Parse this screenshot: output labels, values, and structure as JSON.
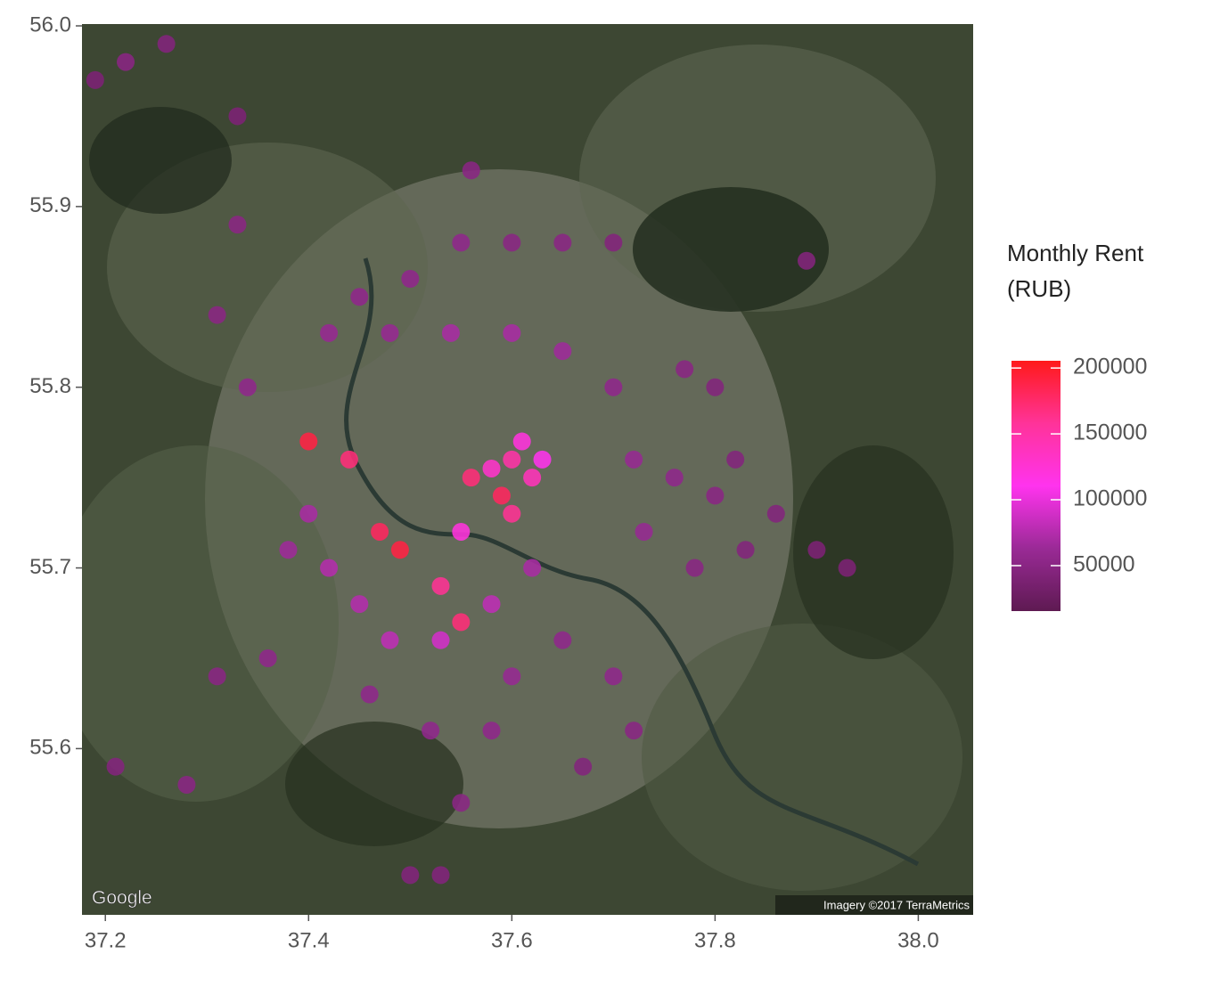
{
  "chart_data": {
    "type": "scatter",
    "legend_title": [
      "Monthly Rent",
      "(RUB)"
    ],
    "credits": [
      "Google",
      "Imagery ©2017 TerraMetrics"
    ],
    "xlim": [
      37.177,
      38.054
    ],
    "ylim": [
      55.508,
      56.001
    ],
    "xticks": [
      37.2,
      37.4,
      37.6,
      37.8,
      {
        "value": 38,
        "label": "38.0"
      }
    ],
    "yticks": [
      55.6,
      55.7,
      55.8,
      55.9,
      {
        "value": 56,
        "label": "56.0"
      }
    ],
    "colorlim": [
      15500,
      205500
    ],
    "colorticks": [
      50000,
      100000,
      150000,
      200000
    ],
    "colors": [
      "#5e1a52",
      "#9a2a96",
      "#ff33ee",
      "#ff3399",
      "#ff1a1a"
    ],
    "x": [
      37.6,
      37.62,
      37.59,
      37.61,
      37.58,
      37.63,
      37.6,
      37.56,
      37.55,
      37.53,
      37.49,
      37.47,
      37.44,
      37.4,
      37.55,
      37.55,
      37.6,
      37.65,
      37.7,
      37.5,
      37.45,
      37.42,
      37.48,
      37.54,
      37.6,
      37.65,
      37.7,
      37.77,
      37.8,
      37.72,
      37.76,
      37.8,
      37.82,
      37.83,
      37.78,
      37.73,
      37.86,
      37.9,
      37.93,
      37.62,
      37.58,
      37.53,
      37.48,
      37.45,
      37.6,
      37.58,
      37.55,
      37.52,
      37.46,
      37.65,
      37.7,
      37.72,
      37.67,
      37.53,
      37.5,
      37.4,
      37.38,
      37.42,
      37.36,
      37.31,
      37.34,
      37.31,
      37.33,
      37.22,
      37.26,
      37.19,
      37.33,
      37.56,
      37.89,
      37.21,
      37.28
    ],
    "y": [
      55.76,
      55.75,
      55.74,
      55.77,
      55.755,
      55.76,
      55.73,
      55.75,
      55.72,
      55.69,
      55.71,
      55.72,
      55.76,
      55.77,
      55.67,
      55.88,
      55.88,
      55.88,
      55.88,
      55.86,
      55.85,
      55.83,
      55.83,
      55.83,
      55.83,
      55.82,
      55.8,
      55.81,
      55.8,
      55.76,
      55.75,
      55.74,
      55.76,
      55.71,
      55.7,
      55.72,
      55.73,
      55.71,
      55.7,
      55.7,
      55.68,
      55.66,
      55.66,
      55.68,
      55.64,
      55.61,
      55.57,
      55.61,
      55.63,
      55.66,
      55.64,
      55.61,
      55.59,
      55.53,
      55.53,
      55.73,
      55.71,
      55.7,
      55.65,
      55.64,
      55.8,
      55.84,
      55.89,
      55.98,
      55.99,
      55.97,
      55.95,
      55.92,
      55.87,
      55.59,
      55.58
    ],
    "values": [
      150000,
      140000,
      180000,
      120000,
      130000,
      110000,
      160000,
      170000,
      120000,
      160000,
      190000,
      180000,
      170000,
      190000,
      170000,
      55000,
      50000,
      50000,
      45000,
      55000,
      55000,
      60000,
      60000,
      70000,
      70000,
      65000,
      55000,
      50000,
      45000,
      60000,
      55000,
      50000,
      45000,
      45000,
      50000,
      60000,
      45000,
      40000,
      40000,
      70000,
      80000,
      90000,
      80000,
      75000,
      60000,
      55000,
      50000,
      55000,
      55000,
      55000,
      55000,
      50000,
      45000,
      45000,
      45000,
      70000,
      65000,
      75000,
      55000,
      50000,
      55000,
      50000,
      50000,
      50000,
      45000,
      40000,
      40000,
      50000,
      45000,
      45000,
      50000
    ]
  }
}
